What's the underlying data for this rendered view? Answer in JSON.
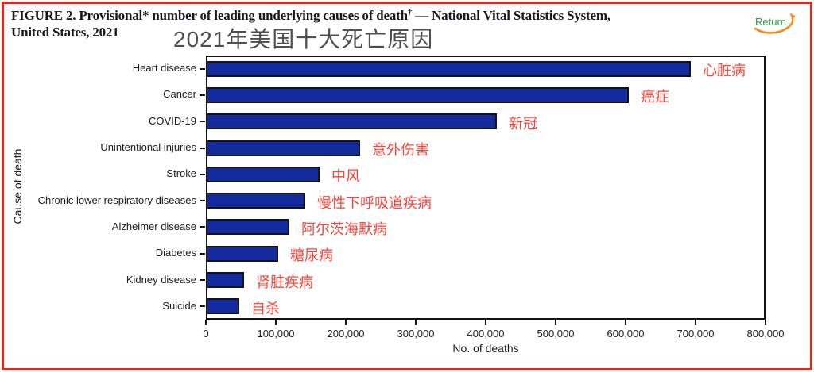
{
  "title": {
    "line1_main": "FIGURE 2. Provisional* number of leading underlying causes of death",
    "line1_sup": "†",
    "line1_rest": "— National Vital Statistics System,",
    "line2": "United States, 2021"
  },
  "subtitle_zh": "2021年美国十大死亡原因",
  "return_button": {
    "label": "Return"
  },
  "colors": {
    "bar_fill": "#132b9d",
    "bar_border": "#141414",
    "annotation_red": "#fa4338",
    "frame_red": "#ea2417",
    "title_text": "#181820",
    "subtitle_gray": "#4f4f4f",
    "return_green": "#2e9b45",
    "return_orange": "#f68a1e"
  },
  "chart_data": {
    "type": "bar",
    "orientation": "horizontal",
    "xlabel": "No. of deaths",
    "ylabel": "Cause of death",
    "xlim": [
      0,
      800000
    ],
    "x_ticks": [
      "0",
      "100,000",
      "200,000",
      "300,000",
      "400,000",
      "500,000",
      "600,000",
      "700,000",
      "800,000"
    ],
    "x_tick_values": [
      0,
      100000,
      200000,
      300000,
      400000,
      500000,
      600000,
      700000,
      800000
    ],
    "grid": false,
    "legend": false,
    "categories": [
      "Heart disease",
      "Cancer",
      "COVID-19",
      "Unintentional injuries",
      "Stroke",
      "Chronic lower respiratory diseases",
      "Alzheimer disease",
      "Diabetes",
      "Kidney disease",
      "Suicide"
    ],
    "values": [
      693000,
      605000,
      416000,
      220000,
      163000,
      142000,
      119000,
      103000,
      54000,
      48000
    ],
    "annotations_zh": [
      "心脏病",
      "癌症",
      "新冠",
      "意外伤害",
      "中风",
      "慢性下呼吸道疾病",
      "阿尔茨海默病",
      "糖尿病",
      "肾脏疾病",
      "自杀"
    ]
  }
}
